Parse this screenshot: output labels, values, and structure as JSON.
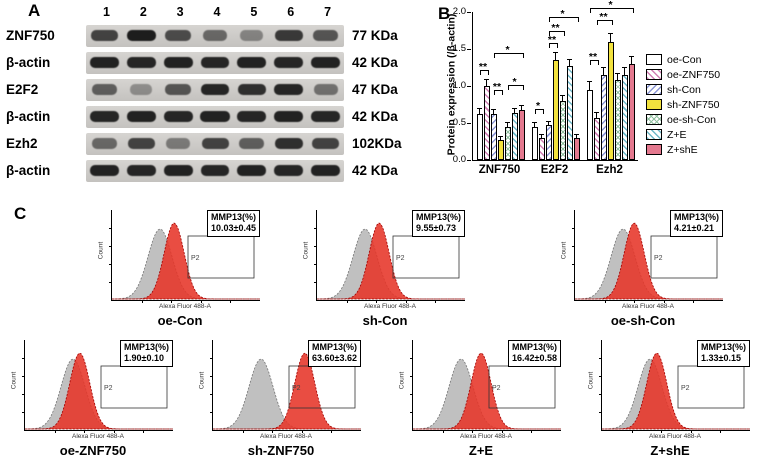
{
  "panels": {
    "a": {
      "label": "A",
      "lanes": [
        "1",
        "2",
        "3",
        "4",
        "5",
        "6",
        "7"
      ],
      "rows": [
        {
          "protein": "ZNF750",
          "kda": "77 KDa",
          "bands": [
            0.75,
            0.95,
            0.7,
            0.55,
            0.4,
            0.8,
            0.65
          ]
        },
        {
          "protein": "β-actin",
          "kda": "42 KDa",
          "bands": [
            0.92,
            0.9,
            0.92,
            0.9,
            0.92,
            0.9,
            0.92
          ]
        },
        {
          "protein": "E2F2",
          "kda": "47 KDa",
          "bands": [
            0.6,
            0.35,
            0.65,
            0.9,
            0.85,
            0.9,
            0.5
          ]
        },
        {
          "protein": "β-actin",
          "kda": "42 KDa",
          "bands": [
            0.9,
            0.92,
            0.9,
            0.92,
            0.9,
            0.92,
            0.9
          ]
        },
        {
          "protein": "Ezh2",
          "kda": "102KDa",
          "bands": [
            0.55,
            0.75,
            0.45,
            0.75,
            0.6,
            0.85,
            0.75
          ]
        },
        {
          "protein": "β-actin",
          "kda": "42 KDa",
          "bands": [
            0.92,
            0.9,
            0.92,
            0.9,
            0.92,
            0.9,
            0.92
          ]
        }
      ]
    },
    "b": {
      "label": "B"
    },
    "c": {
      "label": "C"
    }
  },
  "chart_data": {
    "type": "bar",
    "title": "",
    "xlabel": "",
    "ylabel": "Protein expression (/β-actin)",
    "ylim": [
      0,
      2.0
    ],
    "yticks": [
      0.0,
      0.5,
      1.0,
      1.5,
      2.0
    ],
    "grid": false,
    "legend_position": "right",
    "categories": [
      "ZNF750",
      "E2F2",
      "Ezh2"
    ],
    "series": [
      {
        "name": "oe-Con",
        "values": [
          0.62,
          0.45,
          0.95
        ],
        "errors": [
          0.07,
          0.05,
          0.1
        ],
        "fill": "#ffffff",
        "pattern": "solid"
      },
      {
        "name": "oe-ZNF750",
        "values": [
          1.0,
          0.3,
          0.57
        ],
        "errors": [
          0.08,
          0.04,
          0.06
        ],
        "fill": "#d17fb4",
        "pattern": "diag"
      },
      {
        "name": "sh-Con",
        "values": [
          0.62,
          0.47,
          1.15
        ],
        "errors": [
          0.05,
          0.05,
          0.09
        ],
        "fill": "#8b96d4",
        "pattern": "diag2"
      },
      {
        "name": "sh-ZNF750",
        "values": [
          0.27,
          1.35,
          1.6
        ],
        "errors": [
          0.04,
          0.09,
          0.1
        ],
        "fill": "#f2e23e",
        "pattern": "solid"
      },
      {
        "name": "oe-sh-Con",
        "values": [
          0.45,
          0.8,
          1.08
        ],
        "errors": [
          0.05,
          0.06,
          0.08
        ],
        "fill": "#8fbf9f",
        "pattern": "cross"
      },
      {
        "name": "Z+E",
        "values": [
          0.63,
          1.27,
          1.15
        ],
        "errors": [
          0.06,
          0.08,
          0.09
        ],
        "fill": "#6fb9c9",
        "pattern": "diag"
      },
      {
        "name": "Z+shE",
        "values": [
          0.68,
          0.3,
          1.3
        ],
        "errors": [
          0.05,
          0.04,
          0.09
        ],
        "fill": "#e4798f",
        "pattern": "solid"
      }
    ],
    "annotations": [
      {
        "group": 0,
        "from": 0,
        "to": 1,
        "y": 1.15,
        "label": "**"
      },
      {
        "group": 0,
        "from": 2,
        "to": 3,
        "y": 0.88,
        "label": "**"
      },
      {
        "group": 0,
        "from": 4,
        "to": 6,
        "y": 0.95,
        "label": "*"
      },
      {
        "group": 0,
        "from": 2,
        "to": 6,
        "y": 1.38,
        "label": "*"
      },
      {
        "group": 1,
        "from": 0,
        "to": 1,
        "y": 0.62,
        "label": "*"
      },
      {
        "group": 1,
        "from": 2,
        "to": 3,
        "y": 1.52,
        "label": "**"
      },
      {
        "group": 1,
        "from": 2,
        "to": 4,
        "y": 1.68,
        "label": "**"
      },
      {
        "group": 1,
        "from": 2,
        "to": 6,
        "y": 1.86,
        "label": "*"
      },
      {
        "group": 2,
        "from": 0,
        "to": 1,
        "y": 1.28,
        "label": "**"
      },
      {
        "group": 2,
        "from": 1,
        "to": 3,
        "y": 1.82,
        "label": "**"
      },
      {
        "group": 2,
        "from": 0,
        "to": 6,
        "y": 1.98,
        "label": "*"
      }
    ]
  },
  "flow": {
    "xlabel": "Alexa Fluor 488-A",
    "ylabel": "Count",
    "gate_label": "P2",
    "marker_label": "MMP13(%)",
    "colors": {
      "control_fill": "#bdbdbd",
      "sample_fill": "#e63428"
    },
    "plots": [
      {
        "name": "oe-Con",
        "value": "10.03±0.45",
        "red_peak": 0.42
      },
      {
        "name": "sh-Con",
        "value": "9.55±0.73",
        "red_peak": 0.42
      },
      {
        "name": "oe-sh-Con",
        "value": "4.21±0.21",
        "red_peak": 0.4
      },
      {
        "name": "oe-ZNF750",
        "value": "1.90±0.10",
        "red_peak": 0.37
      },
      {
        "name": "sh-ZNF750",
        "value": "63.60±3.62",
        "red_peak": 0.62
      },
      {
        "name": "Z+E",
        "value": "16.42±0.58",
        "red_peak": 0.46
      },
      {
        "name": "Z+shE",
        "value": "1.33±0.15",
        "red_peak": 0.37
      }
    ]
  }
}
